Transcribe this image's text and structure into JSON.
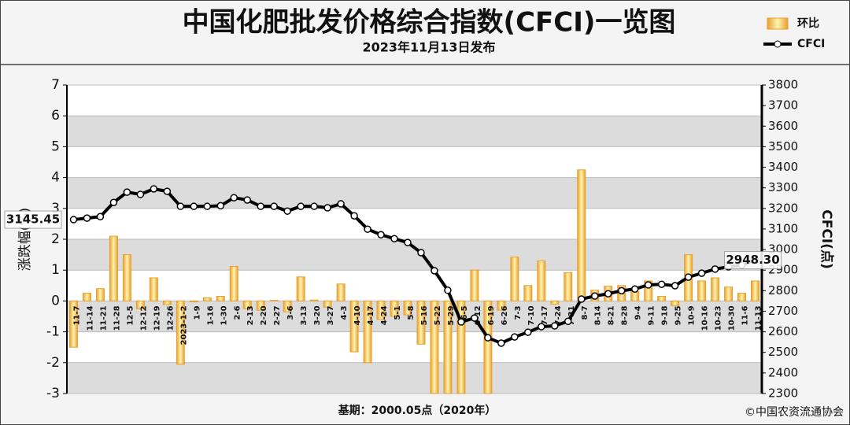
{
  "chart_data": {
    "type": "bar_line",
    "title": "中国化肥批发价格综合指数(CFCI)一览图",
    "subtitle": "2023年11月13日发布",
    "ylabel": "涨跌幅(%)",
    "y2label": "CFCI(点)",
    "footnote": "基期：2000.05点（2020年）",
    "source": "©中国农资流通协会",
    "categories": [
      "11-7",
      "11-14",
      "11-21",
      "11-28",
      "12-5",
      "12-12",
      "12-19",
      "12-26",
      "2023-1-2",
      "1-9",
      "1-16",
      "1-30",
      "2-6",
      "2-13",
      "2-20",
      "2-27",
      "3-6",
      "3-13",
      "3-20",
      "3-27",
      "4-3",
      "4-10",
      "4-17",
      "4-24",
      "5-1",
      "5-8",
      "5-16",
      "5-22",
      "5-29",
      "6-5",
      "6-12",
      "6-19",
      "6-26",
      "7-3",
      "7-10",
      "7-17",
      "7-24",
      "7-31",
      "8-7",
      "8-14",
      "8-21",
      "8-28",
      "9-4",
      "9-11",
      "9-18",
      "9-25",
      "10-9",
      "10-16",
      "10-23",
      "10-30",
      "11-6",
      "11-13"
    ],
    "series": [
      {
        "name": "环比",
        "type": "bar",
        "color": "#e8a030",
        "axis": "y",
        "values": [
          -1.5,
          0.25,
          0.4,
          2.1,
          1.5,
          -0.25,
          0.75,
          -0.12,
          -2.05,
          -0.03,
          0.1,
          0.15,
          1.12,
          -0.25,
          -0.3,
          0.02,
          -0.35,
          0.78,
          0.03,
          -0.2,
          0.55,
          -1.65,
          -2.0,
          -0.6,
          -0.5,
          -0.45,
          -1.4,
          -3.0,
          -3.0,
          -3.0,
          1.0,
          -3.0,
          -0.3,
          1.42,
          0.5,
          1.3,
          -0.1,
          0.92,
          4.25,
          0.35,
          0.48,
          0.5,
          0.3,
          0.65,
          0.15,
          -0.15,
          1.5,
          0.65,
          0.75,
          0.45,
          0.25,
          0.65
        ]
      },
      {
        "name": "CFCI",
        "type": "line",
        "color": "#000000",
        "axis": "y2",
        "values": [
          3145.45,
          3153,
          3160,
          3229,
          3279,
          3268,
          3295,
          3283,
          3210,
          3210,
          3210,
          3213,
          3252,
          3241,
          3210,
          3210,
          3187,
          3210,
          3210,
          3203,
          3222,
          3164,
          3099,
          3072,
          3053,
          3034,
          2985,
          2897,
          2802,
          2648,
          2667,
          2571,
          2545,
          2575,
          2598,
          2625,
          2629,
          2651,
          2759,
          2774,
          2785,
          2800,
          2808,
          2828,
          2831,
          2824,
          2866,
          2885,
          2905,
          2916,
          2924,
          2948.3
        ],
        "value_labels": [
          "3145.45",
          null,
          null,
          null,
          null,
          null,
          null,
          null,
          null,
          null,
          null,
          null,
          null,
          null,
          null,
          null,
          null,
          null,
          null,
          null,
          null,
          null,
          null,
          null,
          null,
          null,
          null,
          null,
          null,
          null,
          null,
          null,
          null,
          null,
          null,
          null,
          null,
          null,
          null,
          null,
          null,
          null,
          null,
          null,
          null,
          null,
          null,
          null,
          null,
          null,
          null,
          "2948.30"
        ]
      }
    ],
    "ylim": [
      -3,
      7
    ],
    "yticks": [
      -3,
      -2,
      -1,
      0,
      1,
      2,
      3,
      4,
      5,
      6,
      7
    ],
    "y2lim": [
      2300,
      3800
    ],
    "y2ticks": [
      2300,
      2400,
      2500,
      2600,
      2700,
      2800,
      2900,
      3000,
      3100,
      3200,
      3300,
      3400,
      3500,
      3600,
      3700,
      3800
    ],
    "grid": true,
    "legend": "upper right"
  }
}
